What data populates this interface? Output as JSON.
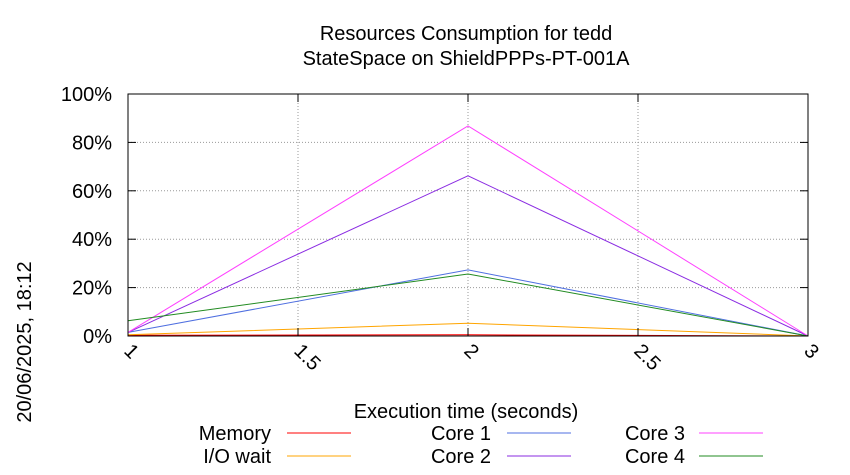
{
  "chart_data": {
    "type": "line",
    "title_line1": "Resources Consumption for tedd",
    "title_line2": "StateSpace on ShieldPPPs-PT-001A",
    "xlabel": "Execution time (seconds)",
    "ylabel": "",
    "side_label": "20/06/2025, 18:12",
    "xlim": [
      1,
      3
    ],
    "ylim": [
      0,
      100
    ],
    "x_ticks": [
      {
        "value": 1,
        "label": "1"
      },
      {
        "value": 1.5,
        "label": "1.5"
      },
      {
        "value": 2,
        "label": "2"
      },
      {
        "value": 2.5,
        "label": "2.5"
      },
      {
        "value": 3,
        "label": "3"
      }
    ],
    "y_ticks": [
      {
        "value": 0,
        "label": "0%"
      },
      {
        "value": 20,
        "label": "20%"
      },
      {
        "value": 40,
        "label": "40%"
      },
      {
        "value": 60,
        "label": "60%"
      },
      {
        "value": 80,
        "label": "80%"
      },
      {
        "value": 100,
        "label": "100%"
      }
    ],
    "grid": true,
    "legend_position": "bottom",
    "series": [
      {
        "name": "Memory",
        "color": "#ff0000",
        "x": [
          1,
          2,
          3
        ],
        "y": [
          0.3,
          0.5,
          0
        ]
      },
      {
        "name": "I/O wait",
        "color": "#ffa500",
        "x": [
          1,
          2,
          3
        ],
        "y": [
          0.5,
          5.3,
          0
        ]
      },
      {
        "name": "Core 1",
        "color": "#4f6fe0",
        "x": [
          1,
          2,
          3
        ],
        "y": [
          1.5,
          27.3,
          0
        ]
      },
      {
        "name": "Core 2",
        "color": "#8a2be2",
        "x": [
          1,
          2,
          3
        ],
        "y": [
          1.5,
          66.2,
          0
        ]
      },
      {
        "name": "Core 3",
        "color": "#ff40ff",
        "x": [
          1,
          2,
          3
        ],
        "y": [
          1.5,
          86.8,
          0
        ]
      },
      {
        "name": "Core 4",
        "color": "#228b22",
        "x": [
          1,
          2,
          3
        ],
        "y": [
          6.3,
          25.6,
          0
        ]
      }
    ]
  }
}
